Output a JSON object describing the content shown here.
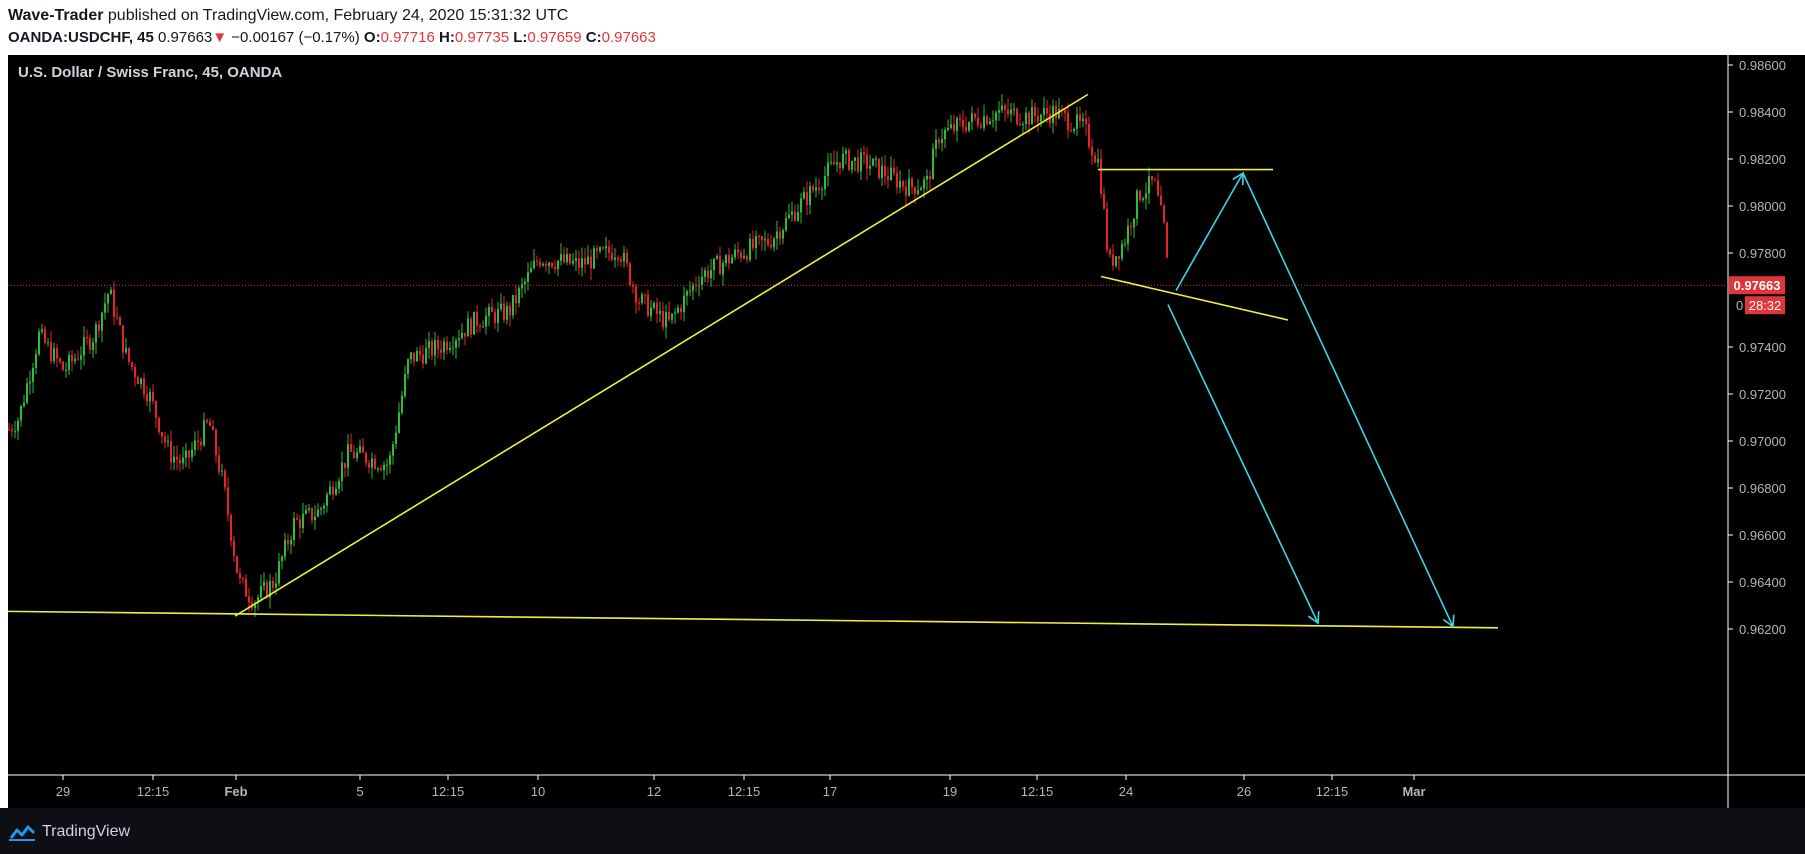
{
  "header": {
    "author": "Wave-Trader",
    "published_text": "published on TradingView.com, February 24, 2020 15:31:32 UTC",
    "symbol": "OANDA:USDCHF, 45",
    "last": "0.97663",
    "change_arrow": "▼",
    "change": "−0.00167 (−0.17%)",
    "open_label": "O:",
    "open": "0.97716",
    "high_label": "H:",
    "high": "0.97735",
    "low_label": "L:",
    "low": "0.97659",
    "close_label": "C:",
    "close": "0.97663"
  },
  "footer": {
    "brand": "TradingView",
    "logo_icon": "tradingview-logo-icon"
  },
  "colors": {
    "background": "#000000",
    "up": "#2ebd3a",
    "down": "#e8232a",
    "trendline": "#f0f03c",
    "arrow": "#3fd4e6",
    "price_line": "#e0353b",
    "axis_text": "#b2b5be"
  },
  "chart_data": {
    "type": "candlestick",
    "title": "U.S. Dollar / Swiss Franc, 45, OANDA",
    "ylim": [
      0.9612,
      0.9866
    ],
    "y_ticks": [
      "0.98600",
      "0.98400",
      "0.98200",
      "0.98000",
      "0.97800",
      "0.97400",
      "0.97200",
      "0.97000",
      "0.96800",
      "0.96600",
      "0.96400",
      "0.96200"
    ],
    "x_ticks": [
      "29",
      "12:15",
      "Feb",
      "5",
      "12:15",
      "10",
      "12",
      "12:15",
      "17",
      "19",
      "12:15",
      "24",
      "26",
      "12:15",
      "Mar"
    ],
    "current_price": "0.97663",
    "countdown": "28:32",
    "hidden_axis_label": "0",
    "price_path": [
      [
        0,
        0.9705
      ],
      [
        10,
        0.971
      ],
      [
        30,
        0.9745
      ],
      [
        55,
        0.973
      ],
      [
        85,
        0.9745
      ],
      [
        100,
        0.9764
      ],
      [
        118,
        0.9735
      ],
      [
        140,
        0.972
      ],
      [
        160,
        0.9695
      ],
      [
        175,
        0.969
      ],
      [
        200,
        0.9708
      ],
      [
        215,
        0.968
      ],
      [
        230,
        0.964
      ],
      [
        245,
        0.9632
      ],
      [
        265,
        0.964
      ],
      [
        285,
        0.9665
      ],
      [
        310,
        0.967
      ],
      [
        340,
        0.9695
      ],
      [
        365,
        0.9692
      ],
      [
        380,
        0.969
      ],
      [
        400,
        0.9735
      ],
      [
        430,
        0.974
      ],
      [
        470,
        0.9752
      ],
      [
        500,
        0.9755
      ],
      [
        530,
        0.9778
      ],
      [
        570,
        0.9775
      ],
      [
        610,
        0.9782
      ],
      [
        630,
        0.976
      ],
      [
        660,
        0.975
      ],
      [
        690,
        0.977
      ],
      [
        730,
        0.978
      ],
      [
        760,
        0.9785
      ],
      [
        800,
        0.9805
      ],
      [
        830,
        0.982
      ],
      [
        860,
        0.9818
      ],
      [
        900,
        0.9808
      ],
      [
        918,
        0.981
      ],
      [
        930,
        0.983
      ],
      [
        960,
        0.9836
      ],
      [
        990,
        0.984
      ],
      [
        1020,
        0.9838
      ],
      [
        1045,
        0.984
      ],
      [
        1075,
        0.9833
      ],
      [
        1090,
        0.9818
      ],
      [
        1100,
        0.9775
      ],
      [
        1115,
        0.9785
      ],
      [
        1130,
        0.9805
      ],
      [
        1145,
        0.981
      ],
      [
        1155,
        0.979
      ],
      [
        1160,
        0.9766
      ]
    ],
    "annotations": {
      "trendlines": [
        {
          "name": "base-support-line",
          "from": [
            0,
            0.96275
          ],
          "to": [
            1490,
            0.96205
          ]
        },
        {
          "name": "rising-trendline",
          "from": [
            227,
            0.96255
          ],
          "to": [
            1080,
            0.98475
          ]
        },
        {
          "name": "resistance-line",
          "from": [
            1090,
            0.98155
          ],
          "to": [
            1265,
            0.98155
          ]
        },
        {
          "name": "falling-trendline",
          "from": [
            1093,
            0.977
          ],
          "to": [
            1280,
            0.97515
          ]
        }
      ],
      "projection_arrows": [
        {
          "name": "projection-arrow-short",
          "points": [
            [
              1160,
              0.9758
            ],
            [
              1310,
              0.96225
            ]
          ]
        },
        {
          "name": "projection-arrow-long",
          "points": [
            [
              1168,
              0.9764
            ],
            [
              1235,
              0.9814
            ],
            [
              1445,
              0.9621
            ]
          ]
        }
      ]
    }
  }
}
